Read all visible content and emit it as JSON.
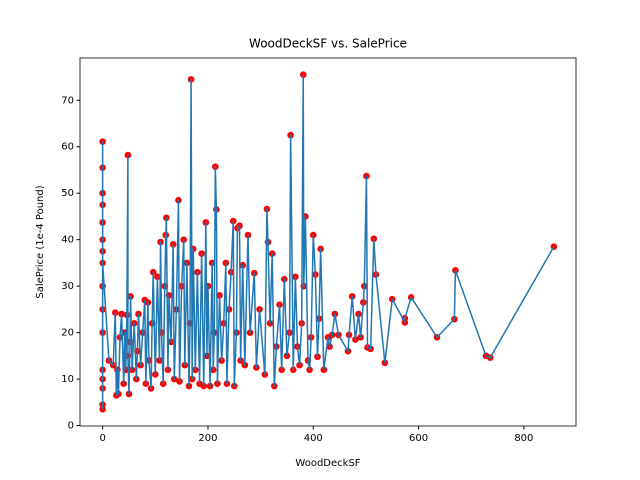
{
  "chart_data": {
    "type": "line",
    "title": "WoodDeckSF vs. SalePrice",
    "x_label": "WoodDeckSF",
    "y_label": "SalePrice (1e-4 Pound)",
    "x": [
      0,
      0,
      0,
      0,
      0,
      0,
      0,
      0,
      0,
      0,
      0,
      0,
      0,
      0,
      0,
      0,
      12,
      20,
      24,
      26,
      28,
      30,
      33,
      36,
      40,
      42,
      44,
      46,
      48,
      48,
      50,
      52,
      53,
      56,
      60,
      64,
      66,
      68,
      72,
      76,
      80,
      82,
      86,
      88,
      92,
      94,
      96,
      100,
      104,
      108,
      110,
      112,
      115,
      118,
      120,
      121,
      124,
      126,
      130,
      134,
      136,
      140,
      144,
      146,
      150,
      154,
      156,
      160,
      164,
      166,
      168,
      170,
      172,
      176,
      180,
      184,
      188,
      192,
      196,
      198,
      200,
      204,
      208,
      210,
      212,
      214,
      216,
      218,
      222,
      226,
      230,
      234,
      236,
      240,
      244,
      248,
      250,
      254,
      256,
      260,
      262,
      266,
      270,
      276,
      280,
      288,
      292,
      298,
      308,
      312,
      314,
      318,
      322,
      326,
      330,
      336,
      340,
      345,
      350,
      355,
      357,
      362,
      366,
      370,
      374,
      378,
      381,
      382,
      385,
      390,
      393,
      396,
      400,
      404,
      408,
      411,
      414,
      420,
      428,
      431,
      436,
      441,
      448,
      466,
      468,
      474,
      480,
      486,
      490,
      495,
      497,
      501,
      503,
      509,
      515,
      519,
      536,
      550,
      574,
      574,
      586,
      635,
      668,
      670,
      728,
      736,
      857
    ],
    "values": [
      3.5,
      61.1,
      4.5,
      55.5,
      10,
      50,
      20,
      47.5,
      8,
      43.7,
      30,
      40,
      12,
      37.5,
      25,
      35,
      14,
      13,
      24.3,
      6.5,
      12,
      6.8,
      19,
      24,
      9,
      20,
      12,
      23.8,
      58.2,
      15,
      6.8,
      18,
      27.8,
      12,
      22,
      10,
      16,
      24,
      13,
      20,
      27,
      9,
      26.5,
      14,
      8,
      22,
      33,
      11,
      32,
      14,
      39.5,
      20,
      9,
      30,
      41,
      44.7,
      12,
      28,
      18,
      39,
      10,
      25,
      48.5,
      9.5,
      30,
      40,
      13,
      35,
      8.5,
      22,
      74.5,
      10,
      38,
      12,
      33,
      9,
      37,
      8.5,
      43.7,
      15,
      30,
      8.5,
      35,
      12,
      20,
      55.7,
      46.5,
      9,
      28,
      14,
      22,
      35,
      9,
      25,
      33,
      44,
      8.5,
      20,
      42.5,
      43,
      14,
      34.5,
      13,
      41,
      20,
      32.8,
      12.5,
      25,
      11,
      46.6,
      39.5,
      22,
      37,
      8.5,
      17,
      26,
      12,
      31.5,
      15,
      20,
      62.5,
      12,
      32,
      17,
      13,
      22,
      75.5,
      30,
      45,
      14,
      12,
      19,
      41,
      32.5,
      14.8,
      23,
      38,
      12,
      19,
      17,
      19.5,
      24,
      19.5,
      16,
      19.5,
      27.8,
      18.5,
      24,
      19,
      26.5,
      30,
      53.7,
      16.8,
      16.5,
      40.2,
      32.5,
      13.5,
      27.2,
      22.2,
      23.1,
      27.6,
      19,
      22.9,
      33.4,
      15,
      14.6,
      38.5
    ],
    "line_color": "#1f77b4",
    "marker_color": "red",
    "xlim": [
      -43,
      899
    ],
    "ylim": [
      -0.1,
      79.1
    ],
    "xticks": [
      0,
      200,
      400,
      600,
      800
    ],
    "yticks": [
      0,
      10,
      20,
      30,
      40,
      50,
      60,
      70
    ]
  }
}
